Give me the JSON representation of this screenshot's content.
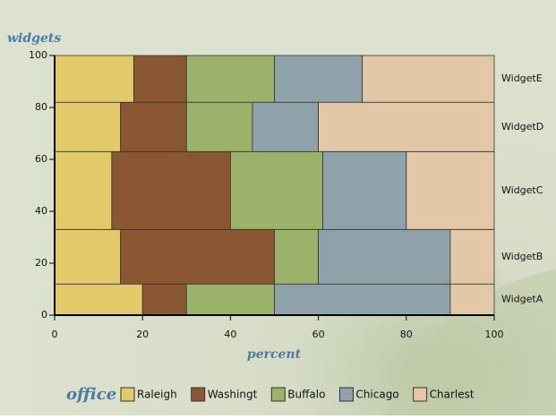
{
  "chart_data": {
    "type": "mosaic",
    "ylabel": "widgets",
    "xlabel": "percent",
    "legend_title": "office",
    "categories": [
      "WidgetA",
      "WidgetB",
      "WidgetC",
      "WidgetD",
      "WidgetE"
    ],
    "heights": [
      12,
      21,
      30,
      19,
      18
    ],
    "series": [
      {
        "name": "Raleigh",
        "color": "#e3c96a",
        "values": [
          20,
          15,
          13,
          15,
          18
        ]
      },
      {
        "name": "Washingt",
        "color": "#8b5733",
        "values": [
          10,
          35,
          27,
          15,
          12
        ]
      },
      {
        "name": "Buffalo",
        "color": "#9bb26b",
        "values": [
          20,
          10,
          21,
          15,
          20
        ]
      },
      {
        "name": "Chicago",
        "color": "#8fa2aa",
        "values": [
          40,
          30,
          19,
          15,
          20
        ]
      },
      {
        "name": "Charlest",
        "color": "#e2c8a6",
        "values": [
          10,
          10,
          20,
          40,
          30
        ]
      }
    ],
    "xlim": [
      0,
      100
    ],
    "xticks": [
      0,
      20,
      40,
      60,
      80,
      100
    ],
    "ylim": [
      0,
      100
    ],
    "yticks": [
      0,
      20,
      40,
      60,
      80,
      100
    ]
  }
}
